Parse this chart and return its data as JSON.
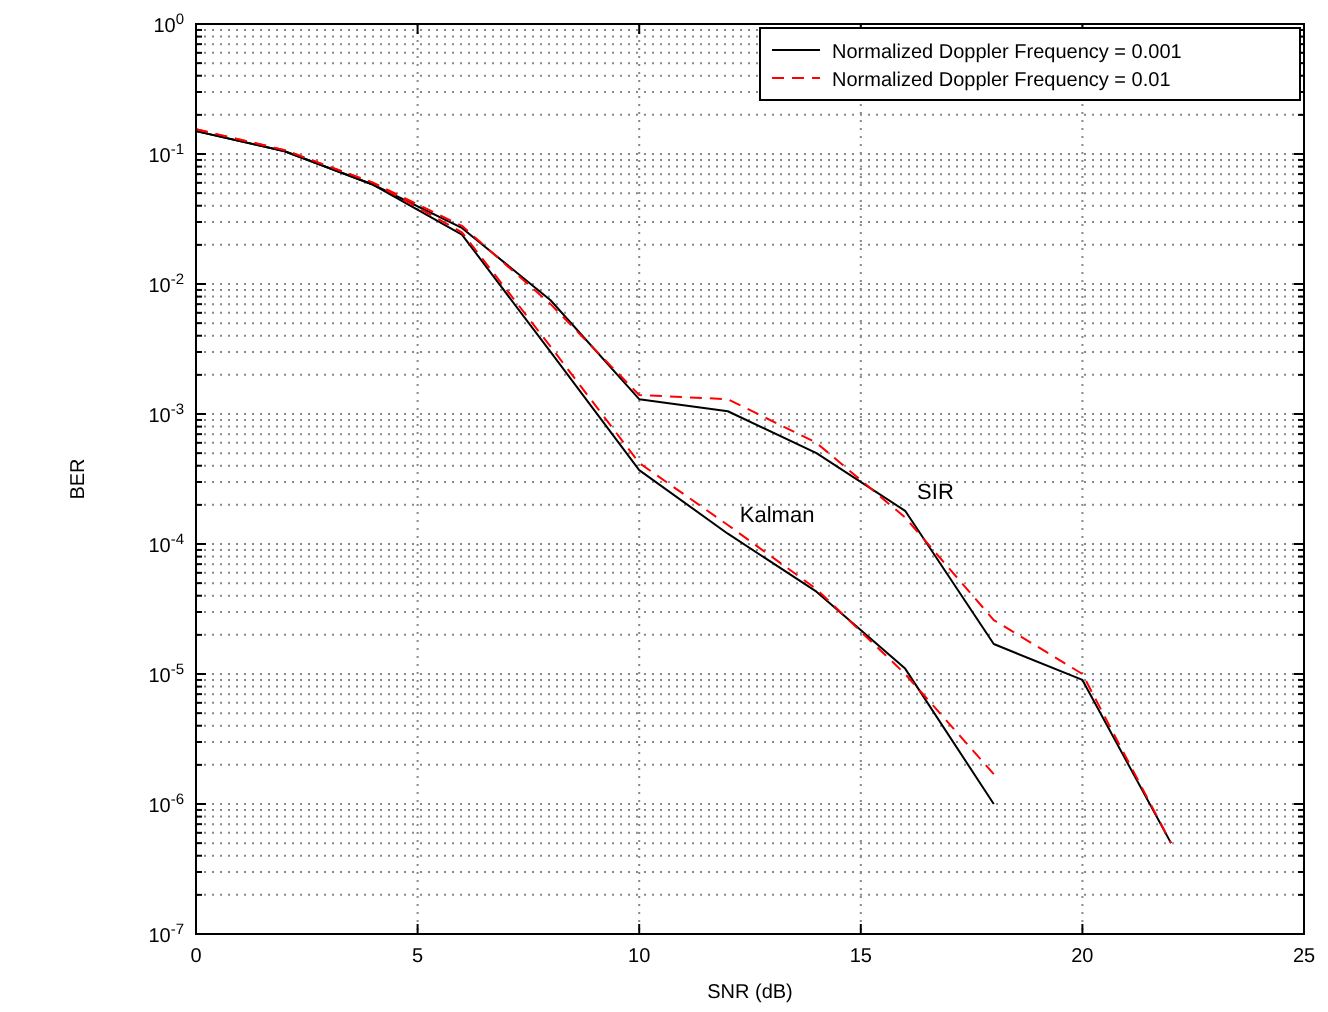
{
  "chart_data": {
    "type": "line",
    "xlabel": "SNR (dB)",
    "ylabel": "BER",
    "log": "y",
    "grid": true,
    "legend": "top right",
    "marker": "none",
    "x": [
      0,
      2,
      4,
      6,
      8,
      10,
      12,
      14,
      16,
      18,
      20,
      22
    ],
    "xlim": [
      0,
      25
    ],
    "xticks": [
      0,
      5,
      10,
      15,
      20,
      25
    ],
    "ylim": [
      1e-07,
      1
    ],
    "yticks": [
      {
        "value": 1e-07,
        "label": "10$^{-7}$"
      },
      {
        "value": 2e-07,
        "label": null
      },
      {
        "value": 3e-07,
        "label": null
      },
      {
        "value": 4e-07,
        "label": null
      },
      {
        "value": 5e-07,
        "label": null
      },
      {
        "value": 6e-07,
        "label": null
      },
      {
        "value": 7e-07,
        "label": null
      },
      {
        "value": 8e-07,
        "label": null
      },
      {
        "value": 9e-07,
        "label": null
      },
      {
        "value": 1e-06,
        "label": "10$^{-6}$"
      },
      {
        "value": 2e-06,
        "label": null
      },
      {
        "value": 3e-06,
        "label": null
      },
      {
        "value": 4e-06,
        "label": null
      },
      {
        "value": 5e-06,
        "label": null
      },
      {
        "value": 6e-06,
        "label": null
      },
      {
        "value": 7e-06,
        "label": null
      },
      {
        "value": 8e-06,
        "label": null
      },
      {
        "value": 9e-06,
        "label": null
      },
      {
        "value": 1e-05,
        "label": "10$^{-5}$"
      },
      {
        "value": 2e-05,
        "label": null
      },
      {
        "value": 3e-05,
        "label": null
      },
      {
        "value": 4e-05,
        "label": null
      },
      {
        "value": 5e-05,
        "label": null
      },
      {
        "value": 6e-05,
        "label": null
      },
      {
        "value": 7e-05,
        "label": null
      },
      {
        "value": 8e-05,
        "label": null
      },
      {
        "value": 9e-05,
        "label": null
      },
      {
        "value": 0.0001,
        "label": "10$^{-4}$"
      },
      {
        "value": 0.0002,
        "label": null
      },
      {
        "value": 0.0003,
        "label": null
      },
      {
        "value": 0.0004,
        "label": null
      },
      {
        "value": 0.0005,
        "label": null
      },
      {
        "value": 0.0006,
        "label": null
      },
      {
        "value": 0.0007,
        "label": null
      },
      {
        "value": 0.0008,
        "label": null
      },
      {
        "value": 0.0009,
        "label": null
      },
      {
        "value": 0.001,
        "label": "10$^{-3}$"
      },
      {
        "value": 0.002,
        "label": null
      },
      {
        "value": 0.003,
        "label": null
      },
      {
        "value": 0.004,
        "label": null
      },
      {
        "value": 0.005,
        "label": null
      },
      {
        "value": 0.006,
        "label": null
      },
      {
        "value": 0.007,
        "label": null
      },
      {
        "value": 0.008,
        "label": null
      },
      {
        "value": 0.009,
        "label": null
      },
      {
        "value": 0.01,
        "label": "10$^{-2}$"
      },
      {
        "value": 0.02,
        "label": null
      },
      {
        "value": 0.03,
        "label": null
      },
      {
        "value": 0.04,
        "label": null
      },
      {
        "value": 0.05,
        "label": null
      },
      {
        "value": 0.06,
        "label": null
      },
      {
        "value": 0.07,
        "label": null
      },
      {
        "value": 0.08,
        "label": null
      },
      {
        "value": 0.09,
        "label": null
      },
      {
        "value": 0.1,
        "label": "10$^{-1}$"
      },
      {
        "value": 0.2,
        "label": null
      },
      {
        "value": 0.3,
        "label": null
      },
      {
        "value": 0.4,
        "label": null
      },
      {
        "value": 0.5,
        "label": null
      },
      {
        "value": 0.6,
        "label": null
      },
      {
        "value": 0.7,
        "label": null
      },
      {
        "value": 0.8,
        "label": null
      },
      {
        "value": 0.9,
        "label": null
      },
      {
        "value": 1,
        "label": "10$^{0}$"
      }
    ],
    "series": [
      {
        "name": "Normalized Doppler Frequency = 0.001",
        "color": "#000000",
        "line_style": "solid",
        "values": [
          0.15,
          0.105,
          0.058,
          0.027,
          0.0075,
          0.0013,
          0.00105,
          0.0005,
          0.00018,
          1.7e-05,
          9e-06,
          5e-07
        ]
      },
      {
        "name": "Normalized Doppler Frequency = 0.01",
        "color": "#ff0000",
        "line_style": "dashed",
        "values": [
          0.155,
          0.107,
          0.06,
          0.028,
          0.007,
          0.0014,
          0.0013,
          0.0006,
          0.00016,
          2.6e-05,
          1e-05,
          5e-07
        ]
      },
      {
        "color": "#000000",
        "line_style": "solid",
        "values": [
          0.15,
          0.105,
          0.058,
          0.024,
          0.003,
          0.00037,
          0.00012,
          4.3e-05,
          1.1e-05,
          1e-06,
          null,
          null
        ]
      },
      {
        "color": "#ff0000",
        "line_style": "dashed",
        "values": [
          0.155,
          0.107,
          0.06,
          0.025,
          0.0033,
          0.00042,
          0.00014,
          4.5e-05,
          1e-05,
          1.7e-06,
          null,
          null
        ]
      }
    ],
    "annotations": [
      {
        "text": "Kalman",
        "x": 12,
        "y": 0.00012
      },
      {
        "text": "SIR",
        "x": 16,
        "y": 0.00018
      }
    ]
  }
}
